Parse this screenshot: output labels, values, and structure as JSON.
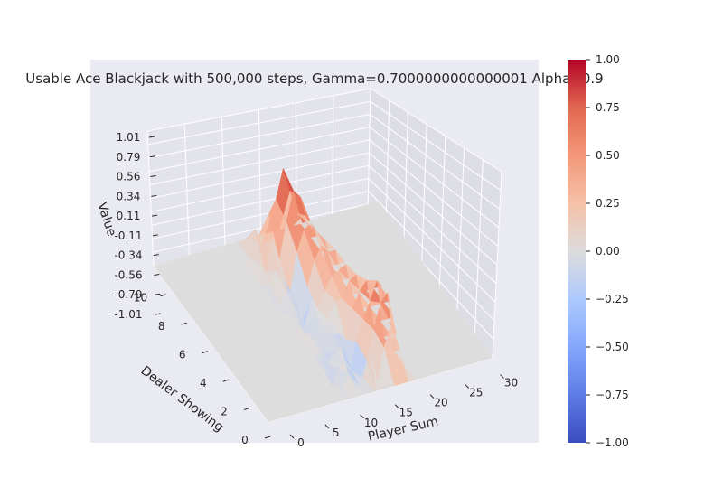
{
  "chart_data": {
    "type": "surface3d",
    "title": "Usable Ace Blackjack with 500,000 steps, Gamma=0.7000000000000001 Alpha=0.9",
    "xlabel": "Player Sum",
    "ylabel": "Dealer Showing",
    "zlabel": "Value",
    "x_ticks": [
      "0",
      "5",
      "10",
      "15",
      "20",
      "25",
      "30"
    ],
    "y_ticks": [
      "0",
      "2",
      "4",
      "6",
      "8",
      "10"
    ],
    "z_ticks": [
      "-1.01",
      "-0.79",
      "-0.56",
      "-0.34",
      "-0.11",
      "0.11",
      "0.34",
      "0.56",
      "0.79",
      "1.01"
    ],
    "zlim": [
      -1.01,
      1.01
    ],
    "colorbar": {
      "colormap": "coolwarm",
      "ticks": [
        "1.00",
        "0.75",
        "0.50",
        "0.25",
        "0.00",
        "−0.25",
        "−0.50",
        "−0.75",
        "−1.00"
      ],
      "range": [
        -1.0,
        1.0
      ]
    },
    "grid": true,
    "surface": {
      "player_sum": [
        12,
        13,
        14,
        15,
        16,
        17,
        18,
        19,
        20,
        21
      ],
      "dealer_showing": [
        1,
        2,
        3,
        4,
        5,
        6,
        7,
        8,
        9,
        10
      ],
      "values": [
        [
          -0.05,
          0.1,
          -0.1,
          0.0,
          0.25,
          -0.2,
          0.3,
          0.55,
          0.3,
          0.0
        ],
        [
          -0.2,
          0.0,
          0.05,
          -0.1,
          -0.3,
          0.0,
          0.35,
          0.65,
          0.75,
          0.0
        ],
        [
          0.0,
          -0.15,
          0.0,
          0.0,
          -0.35,
          0.05,
          0.3,
          0.5,
          0.72,
          0.0
        ],
        [
          0.05,
          0.0,
          -0.2,
          0.0,
          0.0,
          -0.1,
          0.25,
          0.45,
          0.55,
          0.0
        ],
        [
          0.0,
          -0.1,
          0.1,
          -0.05,
          0.0,
          0.2,
          0.2,
          0.4,
          0.45,
          0.0
        ],
        [
          0.0,
          0.0,
          -0.3,
          0.1,
          -0.05,
          0.15,
          0.3,
          0.35,
          0.4,
          0.0
        ],
        [
          -0.1,
          0.05,
          0.0,
          -0.4,
          0.05,
          0.35,
          0.5,
          0.4,
          0.4,
          0.0
        ],
        [
          0.0,
          0.15,
          0.0,
          -0.2,
          0.3,
          0.55,
          0.6,
          0.45,
          0.35,
          0.0
        ],
        [
          0.1,
          -0.05,
          0.35,
          0.05,
          0.5,
          0.85,
          0.75,
          0.4,
          0.3,
          0.0
        ],
        [
          0.0,
          0.3,
          0.1,
          0.45,
          0.6,
          0.95,
          0.65,
          0.35,
          0.3,
          0.0
        ]
      ]
    }
  }
}
